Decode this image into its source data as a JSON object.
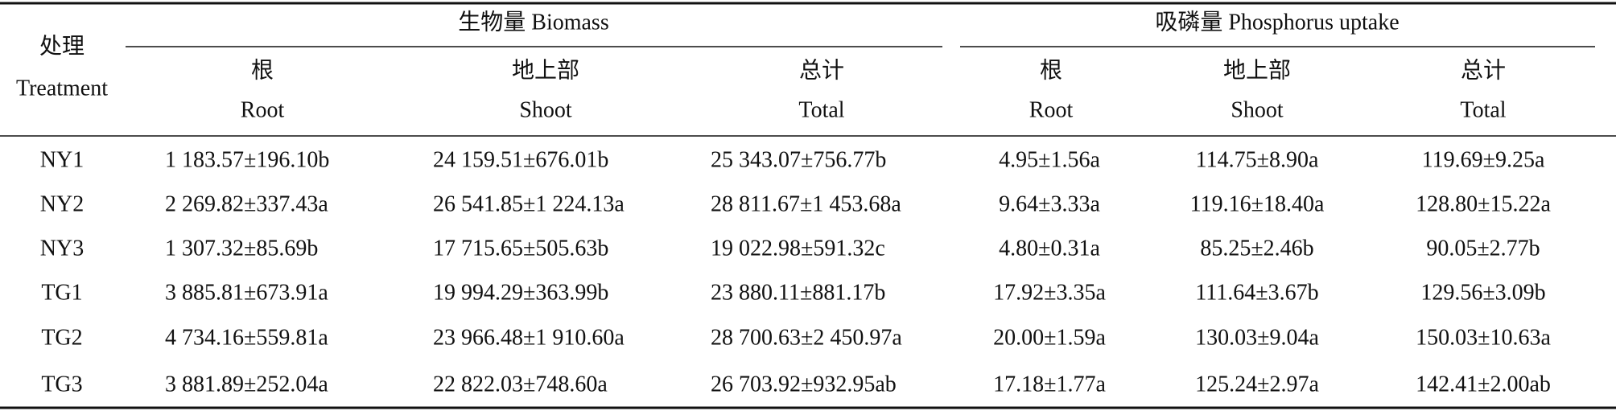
{
  "table": {
    "corner": [
      "处理",
      "Treatment"
    ],
    "groups": [
      "生物量 Biomass",
      "吸磷量 Phosphorus uptake"
    ],
    "columns": [
      [
        "根",
        "Root"
      ],
      [
        "地上部",
        "Shoot"
      ],
      [
        "总计",
        "Total"
      ],
      [
        "根",
        "Root"
      ],
      [
        "地上部",
        "Shoot"
      ],
      [
        "总计",
        "Total"
      ]
    ],
    "rows": [
      [
        "NY1",
        "1 183.57±196.10b",
        "24 159.51±676.01b",
        "25 343.07±756.77b",
        "4.95±1.56a",
        "114.75±8.90a",
        "119.69±9.25a"
      ],
      [
        "NY2",
        "2 269.82±337.43a",
        "26 541.85±1 224.13a",
        "28 811.67±1 453.68a",
        "9.64±3.33a",
        "119.16±18.40a",
        "128.80±15.22a"
      ],
      [
        "NY3",
        "1 307.32±85.69b",
        "17 715.65±505.63b",
        "19 022.98±591.32c",
        "4.80±0.31a",
        "85.25±2.46b",
        "90.05±2.77b"
      ],
      [
        "TG1",
        "3 885.81±673.91a",
        "19 994.29±363.99b",
        "23 880.11±881.17b",
        "17.92±3.35a",
        "111.64±3.67b",
        "129.56±3.09b"
      ],
      [
        "TG2",
        "4 734.16±559.81a",
        "23 966.48±1 910.60a",
        "28 700.63±2 450.97a",
        "20.00±1.59a",
        "130.03±9.04a",
        "150.03±10.63a"
      ],
      [
        "TG3",
        "3 881.89±252.04a",
        "22 822.03±748.60a",
        "26 703.92±932.95ab",
        "17.18±1.77a",
        "125.24±2.97a",
        "142.41±2.00ab"
      ]
    ]
  }
}
